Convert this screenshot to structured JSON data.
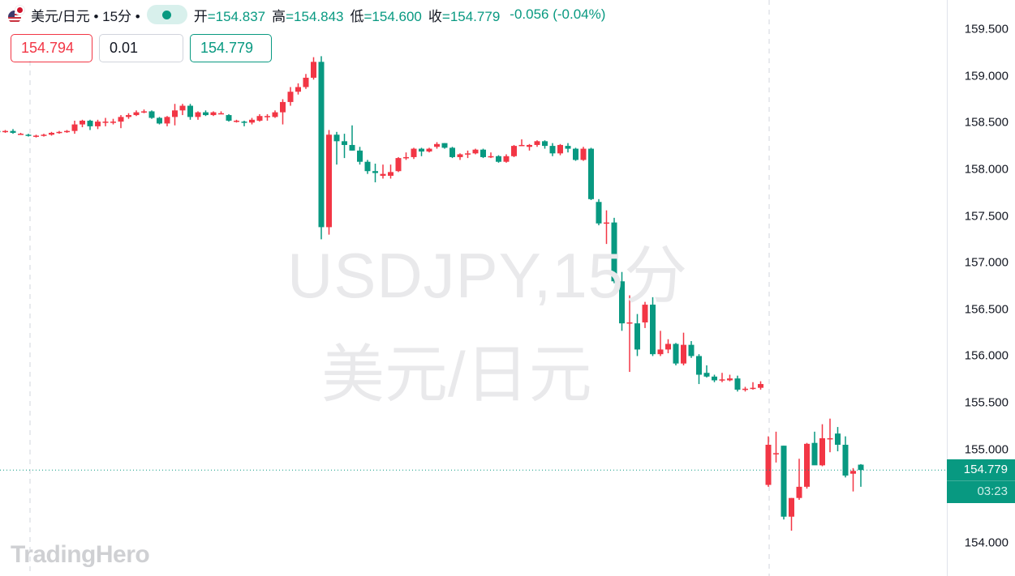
{
  "header": {
    "symbol_title": "美元/日元 • 15分 •",
    "open_label": "开",
    "open": "=154.837",
    "high_label": "高",
    "high": "=154.843",
    "low_label": "低",
    "low": "=154.600",
    "close_label": "收",
    "close": "=154.779",
    "change": "-0.056 (-0.04%)",
    "icons": [
      "us-flag-icon",
      "jp-flag-icon",
      "market-status-dot-icon"
    ]
  },
  "trade": {
    "sell_price": "154.794",
    "quantity": "0.01",
    "buy_price": "154.779"
  },
  "watermark": {
    "line1": "USDJPY,15分",
    "line2": "美元/日元"
  },
  "logo": "TradingHero",
  "price_label": {
    "price": "154.779",
    "countdown": "03:23"
  },
  "colors": {
    "up": "#f23645",
    "down": "#089981",
    "grid_line": "#e0e3eb"
  },
  "chart_data": {
    "type": "candlestick",
    "title": "",
    "y_axis_position": "right",
    "ylim": [
      153.95,
      159.6
    ],
    "y_ticks": [
      "159.500",
      "159.000",
      "158.500",
      "158.000",
      "157.500",
      "157.000",
      "156.500",
      "156.000",
      "155.500",
      "155.000",
      "154.000"
    ],
    "current_price": 154.779,
    "grid": false,
    "candles": [
      [
        158.42,
        158.44,
        158.4,
        158.41
      ],
      [
        158.41,
        158.43,
        158.39,
        158.4
      ],
      [
        158.4,
        158.42,
        158.39,
        158.41
      ],
      [
        158.41,
        158.43,
        158.38,
        158.39
      ],
      [
        158.38,
        158.39,
        158.37,
        158.38
      ],
      [
        158.37,
        158.38,
        158.35,
        158.36
      ],
      [
        158.35,
        158.37,
        158.34,
        158.36
      ],
      [
        158.36,
        158.38,
        158.35,
        158.37
      ],
      [
        158.37,
        158.4,
        158.36,
        158.39
      ],
      [
        158.39,
        158.41,
        158.38,
        158.4
      ],
      [
        158.4,
        158.42,
        158.39,
        158.41
      ],
      [
        158.41,
        158.52,
        158.38,
        158.48
      ],
      [
        158.48,
        158.53,
        158.45,
        158.52
      ],
      [
        158.52,
        158.53,
        158.42,
        158.46
      ],
      [
        158.46,
        158.53,
        158.43,
        158.51
      ],
      [
        158.51,
        158.55,
        158.46,
        158.51
      ],
      [
        158.5,
        158.54,
        158.48,
        158.51
      ],
      [
        158.51,
        158.58,
        158.44,
        158.56
      ],
      [
        158.56,
        158.6,
        158.54,
        158.58
      ],
      [
        158.58,
        158.63,
        158.57,
        158.61
      ],
      [
        158.61,
        158.64,
        158.6,
        158.62
      ],
      [
        158.62,
        158.63,
        158.54,
        158.55
      ],
      [
        158.55,
        158.56,
        158.48,
        158.49
      ],
      [
        158.49,
        158.57,
        158.46,
        158.56
      ],
      [
        158.56,
        158.7,
        158.47,
        158.63
      ],
      [
        158.63,
        158.7,
        158.58,
        158.68
      ],
      [
        158.68,
        158.7,
        158.53,
        158.56
      ],
      [
        158.56,
        158.62,
        158.53,
        158.61
      ],
      [
        158.61,
        158.63,
        158.57,
        158.58
      ],
      [
        158.58,
        158.62,
        158.57,
        158.61
      ],
      [
        158.6,
        158.62,
        158.59,
        158.6
      ],
      [
        158.58,
        158.59,
        158.51,
        158.52
      ],
      [
        158.51,
        158.53,
        158.5,
        158.52
      ],
      [
        158.51,
        158.52,
        158.46,
        158.5
      ],
      [
        158.5,
        158.55,
        158.48,
        158.53
      ],
      [
        158.52,
        158.59,
        158.51,
        158.57
      ],
      [
        158.57,
        158.59,
        158.52,
        158.57
      ],
      [
        158.56,
        158.63,
        158.55,
        158.61
      ],
      [
        158.61,
        158.75,
        158.48,
        158.72
      ],
      [
        158.72,
        158.88,
        158.68,
        158.83
      ],
      [
        158.83,
        158.92,
        158.8,
        158.88
      ],
      [
        158.88,
        159.02,
        158.86,
        158.98
      ],
      [
        158.98,
        159.2,
        158.96,
        159.15
      ],
      [
        159.15,
        159.21,
        157.25,
        157.38
      ],
      [
        157.38,
        158.42,
        157.3,
        158.37
      ],
      [
        158.37,
        158.4,
        158.05,
        158.3
      ],
      [
        158.3,
        158.38,
        158.12,
        158.26
      ],
      [
        158.26,
        158.47,
        158.2,
        158.2
      ],
      [
        158.2,
        158.24,
        158.05,
        158.08
      ],
      [
        158.08,
        158.1,
        157.95,
        157.98
      ],
      [
        157.98,
        158.06,
        157.86,
        157.96
      ],
      [
        157.93,
        158.05,
        157.9,
        157.95
      ],
      [
        157.93,
        158.05,
        157.9,
        157.97
      ],
      [
        157.98,
        158.13,
        157.97,
        158.12
      ],
      [
        158.12,
        158.18,
        158.1,
        158.13
      ],
      [
        158.13,
        158.23,
        158.11,
        158.22
      ],
      [
        158.22,
        158.23,
        158.14,
        158.19
      ],
      [
        158.19,
        158.23,
        158.18,
        158.22
      ],
      [
        158.24,
        158.29,
        158.22,
        158.27
      ],
      [
        158.28,
        158.28,
        158.22,
        158.23
      ],
      [
        158.23,
        158.24,
        158.12,
        158.13
      ],
      [
        158.13,
        158.17,
        158.1,
        158.16
      ],
      [
        158.16,
        158.2,
        158.12,
        158.17
      ],
      [
        158.17,
        158.22,
        158.16,
        158.21
      ],
      [
        158.21,
        158.22,
        158.12,
        158.13
      ],
      [
        158.14,
        158.18,
        158.12,
        158.14
      ],
      [
        158.14,
        158.15,
        158.07,
        158.08
      ],
      [
        158.08,
        158.16,
        158.07,
        158.14
      ],
      [
        158.14,
        158.26,
        158.13,
        158.25
      ],
      [
        158.26,
        158.32,
        158.25,
        158.26
      ],
      [
        158.24,
        158.27,
        158.2,
        158.26
      ],
      [
        158.26,
        158.31,
        158.24,
        158.3
      ],
      [
        158.3,
        158.31,
        158.22,
        158.25
      ],
      [
        158.25,
        158.28,
        158.14,
        158.17
      ],
      [
        158.17,
        158.27,
        158.15,
        158.26
      ],
      [
        158.25,
        158.28,
        158.18,
        158.22
      ],
      [
        158.22,
        158.23,
        158.09,
        158.1
      ],
      [
        158.1,
        158.24,
        158.09,
        158.22
      ],
      [
        158.22,
        158.23,
        157.67,
        157.68
      ],
      [
        157.65,
        157.68,
        157.4,
        157.42
      ],
      [
        157.43,
        157.56,
        157.2,
        157.43
      ],
      [
        157.43,
        157.48,
        156.78,
        156.8
      ],
      [
        156.8,
        156.9,
        156.27,
        156.35
      ],
      [
        156.35,
        156.65,
        155.83,
        156.36
      ],
      [
        156.35,
        156.45,
        156.0,
        156.07
      ],
      [
        156.36,
        156.58,
        156.3,
        156.55
      ],
      [
        156.55,
        156.63,
        156.0,
        156.02
      ],
      [
        156.02,
        156.27,
        156.0,
        156.07
      ],
      [
        156.07,
        156.18,
        156.03,
        156.13
      ],
      [
        156.13,
        156.14,
        155.9,
        155.92
      ],
      [
        155.92,
        156.25,
        155.9,
        156.12
      ],
      [
        156.12,
        156.16,
        155.98,
        156.0
      ],
      [
        156.0,
        156.02,
        155.7,
        155.8
      ],
      [
        155.82,
        155.9,
        155.77,
        155.78
      ],
      [
        155.78,
        155.8,
        155.72,
        155.74
      ],
      [
        155.75,
        155.82,
        155.72,
        155.75
      ],
      [
        155.74,
        155.8,
        155.73,
        155.76
      ],
      [
        155.76,
        155.79,
        155.62,
        155.64
      ],
      [
        155.64,
        155.67,
        155.62,
        155.65
      ],
      [
        155.65,
        155.72,
        155.64,
        155.66
      ],
      [
        155.66,
        155.73,
        155.64,
        155.7
      ],
      [
        154.62,
        155.14,
        154.6,
        155.05
      ],
      [
        154.96,
        155.19,
        154.86,
        154.96
      ],
      [
        155.04,
        155.04,
        154.25,
        154.28
      ],
      [
        154.28,
        154.48,
        154.13,
        154.48
      ],
      [
        154.48,
        154.9,
        154.46,
        154.6
      ],
      [
        154.6,
        155.07,
        154.58,
        155.06
      ],
      [
        155.07,
        155.19,
        154.85,
        154.83
      ],
      [
        154.83,
        155.27,
        154.82,
        155.12
      ],
      [
        155.12,
        155.33,
        154.97,
        155.12
      ],
      [
        155.17,
        155.24,
        154.98,
        155.05
      ],
      [
        155.05,
        155.14,
        154.7,
        154.72
      ],
      [
        154.74,
        154.8,
        154.55,
        154.77
      ],
      [
        154.837,
        154.843,
        154.6,
        154.779
      ]
    ]
  }
}
